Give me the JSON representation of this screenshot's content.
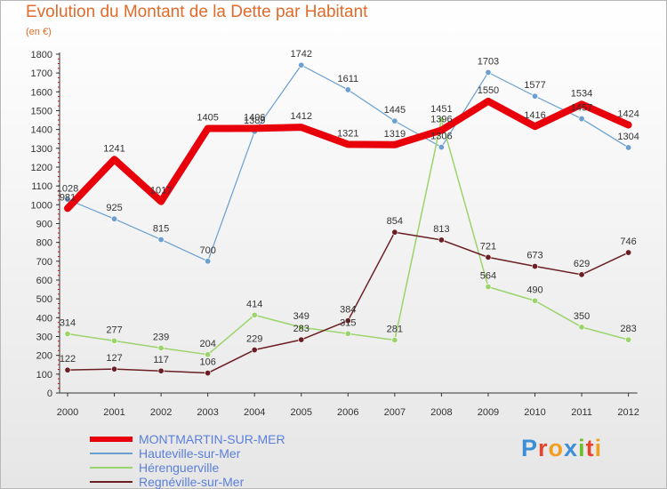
{
  "header": {
    "title": "Evolution du Montant de la Dette par Habitant",
    "unit": "(en €)"
  },
  "logo": {
    "text": "Proxiti",
    "colors": [
      "#3b8fd6",
      "#e8442b",
      "#f0a020",
      "#3b8fd6",
      "#6cbf2f",
      "#e8442b",
      "#f0a020"
    ]
  },
  "chart_data": {
    "type": "line",
    "x": [
      "2000",
      "2001",
      "2002",
      "2003",
      "2004",
      "2005",
      "2006",
      "2007",
      "2008",
      "2009",
      "2010",
      "2011",
      "2012"
    ],
    "ylim": [
      0,
      1800
    ],
    "yticks": [
      0,
      100,
      200,
      300,
      400,
      500,
      600,
      700,
      800,
      900,
      1000,
      1100,
      1200,
      1300,
      1400,
      1500,
      1600,
      1700,
      1800
    ],
    "grid": false,
    "legend_position": "bottom-left",
    "series": [
      {
        "name": "MONTMARTIN-SUR-MER",
        "color": "#e8000b",
        "values": [
          981,
          1241,
          1017,
          1405,
          1406,
          1412,
          1321,
          1319,
          1396,
          1550,
          1416,
          1534,
          1424
        ]
      },
      {
        "name": "Hauteville-sur-Mer",
        "color": "#6a9fd0",
        "values": [
          1028,
          925,
          815,
          700,
          1389,
          1742,
          1611,
          1445,
          1306,
          1703,
          1577,
          1457,
          1304
        ]
      },
      {
        "name": "Hérenguerville",
        "color": "#9ad46a",
        "values": [
          314,
          277,
          239,
          204,
          414,
          349,
          315,
          281,
          1451,
          564,
          490,
          350,
          283
        ]
      },
      {
        "name": "Regnéville-sur-Mer",
        "color": "#6b1f24",
        "values": [
          122,
          127,
          117,
          106,
          229,
          283,
          384,
          854,
          813,
          721,
          673,
          629,
          746
        ]
      }
    ]
  }
}
